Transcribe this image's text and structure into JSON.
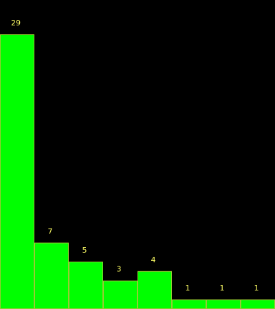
{
  "chart_data": {
    "type": "bar",
    "values": [
      29,
      7,
      5,
      3,
      4,
      1,
      1,
      1
    ],
    "ylim": [
      0,
      29
    ],
    "grid": false,
    "colors": {
      "background": "#000000",
      "bar_fill": "#00ff00",
      "bar_stroke": "#99cc33",
      "label": "#ffff66"
    }
  }
}
